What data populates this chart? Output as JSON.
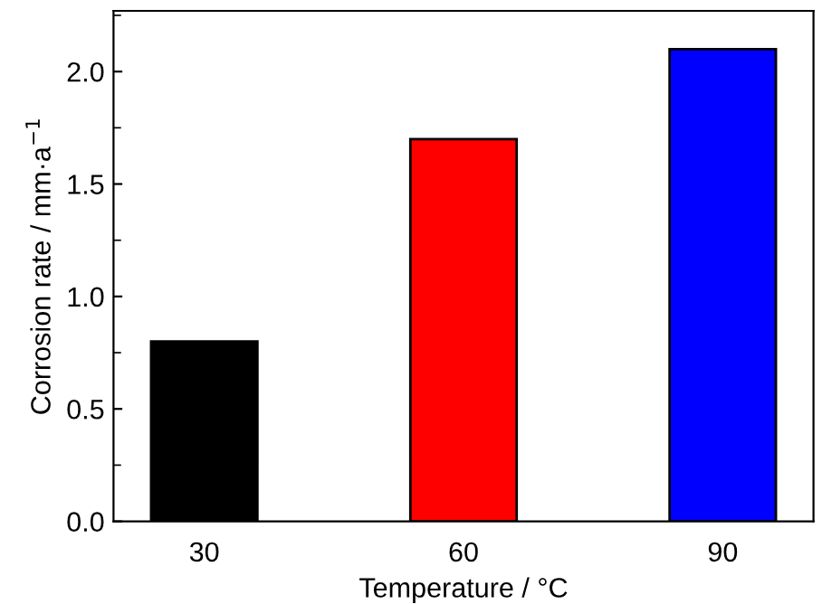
{
  "chart_data": {
    "type": "bar",
    "xlabel": "Temperature / °C",
    "ylabel": "Corrosion rate / mm·a$^{−1}$",
    "categories": [
      "30",
      "60",
      "90"
    ],
    "values": [
      0.8,
      1.7,
      2.1
    ],
    "colors": [
      "#000000",
      "#ff0000",
      "#0000ff"
    ],
    "ylim": [
      0,
      2.27
    ],
    "yticks": [
      {
        "value": 0,
        "label": "0.0"
      },
      0.5,
      {
        "value": 1,
        "label": "1.0"
      },
      1.5,
      {
        "value": 2,
        "label": "2.0"
      }
    ],
    "grid": false,
    "legend": false
  }
}
